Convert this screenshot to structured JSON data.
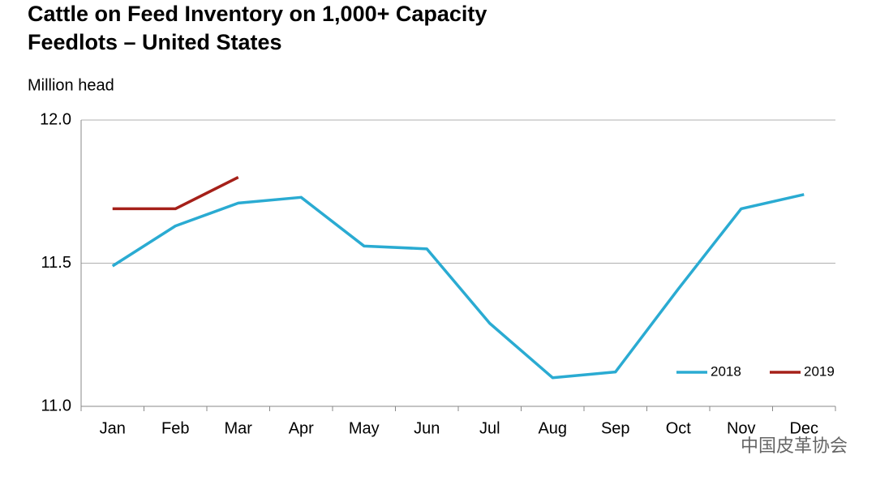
{
  "chart_data": {
    "type": "line",
    "title": [
      "Cattle on Feed Inventory on 1,000+ Capacity",
      "Feedlots – United States"
    ],
    "y_label": "Million head",
    "categories": [
      "Jan",
      "Feb",
      "Mar",
      "Apr",
      "May",
      "Jun",
      "Jul",
      "Aug",
      "Sep",
      "Oct",
      "Nov",
      "Dec"
    ],
    "series": [
      {
        "name": "2018",
        "color": "#2aabd2",
        "values": [
          11.49,
          11.63,
          11.71,
          11.73,
          11.56,
          11.55,
          11.29,
          11.1,
          11.12,
          11.41,
          11.69,
          11.74
        ]
      },
      {
        "name": "2019",
        "color": "#a52019",
        "values": [
          11.69,
          11.69,
          11.8,
          null,
          null,
          null,
          null,
          null,
          null,
          null,
          null,
          null
        ]
      }
    ],
    "ylim": [
      11.0,
      12.0
    ],
    "yticks": [
      {
        "value": 11.0,
        "label": "11.0"
      },
      11.5,
      {
        "value": 12.0,
        "label": "12.0"
      }
    ],
    "grid": true,
    "legend": "lower right",
    "watermark": "中国皮革协会"
  }
}
